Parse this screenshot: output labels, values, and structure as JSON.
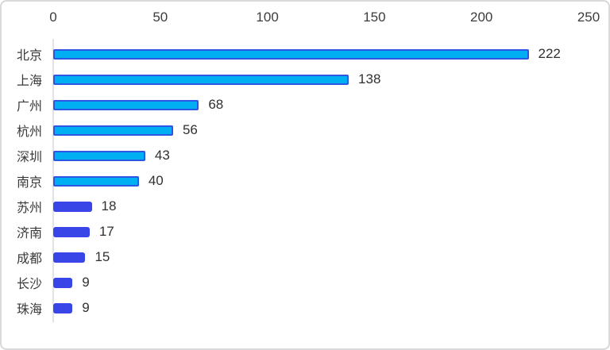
{
  "chart_data": {
    "type": "bar",
    "orientation": "horizontal",
    "title": "",
    "xlabel": "",
    "ylabel": "",
    "categories": [
      "北京",
      "上海",
      "广州",
      "杭州",
      "深圳",
      "南京",
      "苏州",
      "济南",
      "成都",
      "长沙",
      "珠海"
    ],
    "values": [
      222,
      138,
      68,
      56,
      43,
      40,
      18,
      17,
      15,
      9,
      9
    ],
    "value_labels": [
      "222",
      "138",
      "68",
      "56",
      "43",
      "40",
      "18",
      "17",
      "15",
      "9",
      "9"
    ],
    "bar_styles": [
      "outlined",
      "outlined",
      "outlined",
      "outlined",
      "outlined",
      "outlined",
      "solid",
      "solid",
      "solid",
      "solid",
      "solid"
    ],
    "xlim": [
      0,
      250
    ],
    "x_ticks": [
      0,
      50,
      100,
      150,
      200,
      250
    ],
    "x_tick_labels": [
      "0",
      "50",
      "100",
      "150",
      "200",
      "250"
    ],
    "axis_position": "top",
    "grid": false,
    "legend": null,
    "colors": {
      "bar_fill_outlined": "#00aef2",
      "bar_stroke_outlined": "#2b57e2",
      "bar_fill_solid": "#3a45e8",
      "axis_line": "#e3e3e5",
      "tick_text": "#3c3c3e",
      "category_text": "#3a3a3c",
      "value_text": "#303032",
      "card_border": "#d9d9db",
      "background": "#ffffff"
    }
  }
}
